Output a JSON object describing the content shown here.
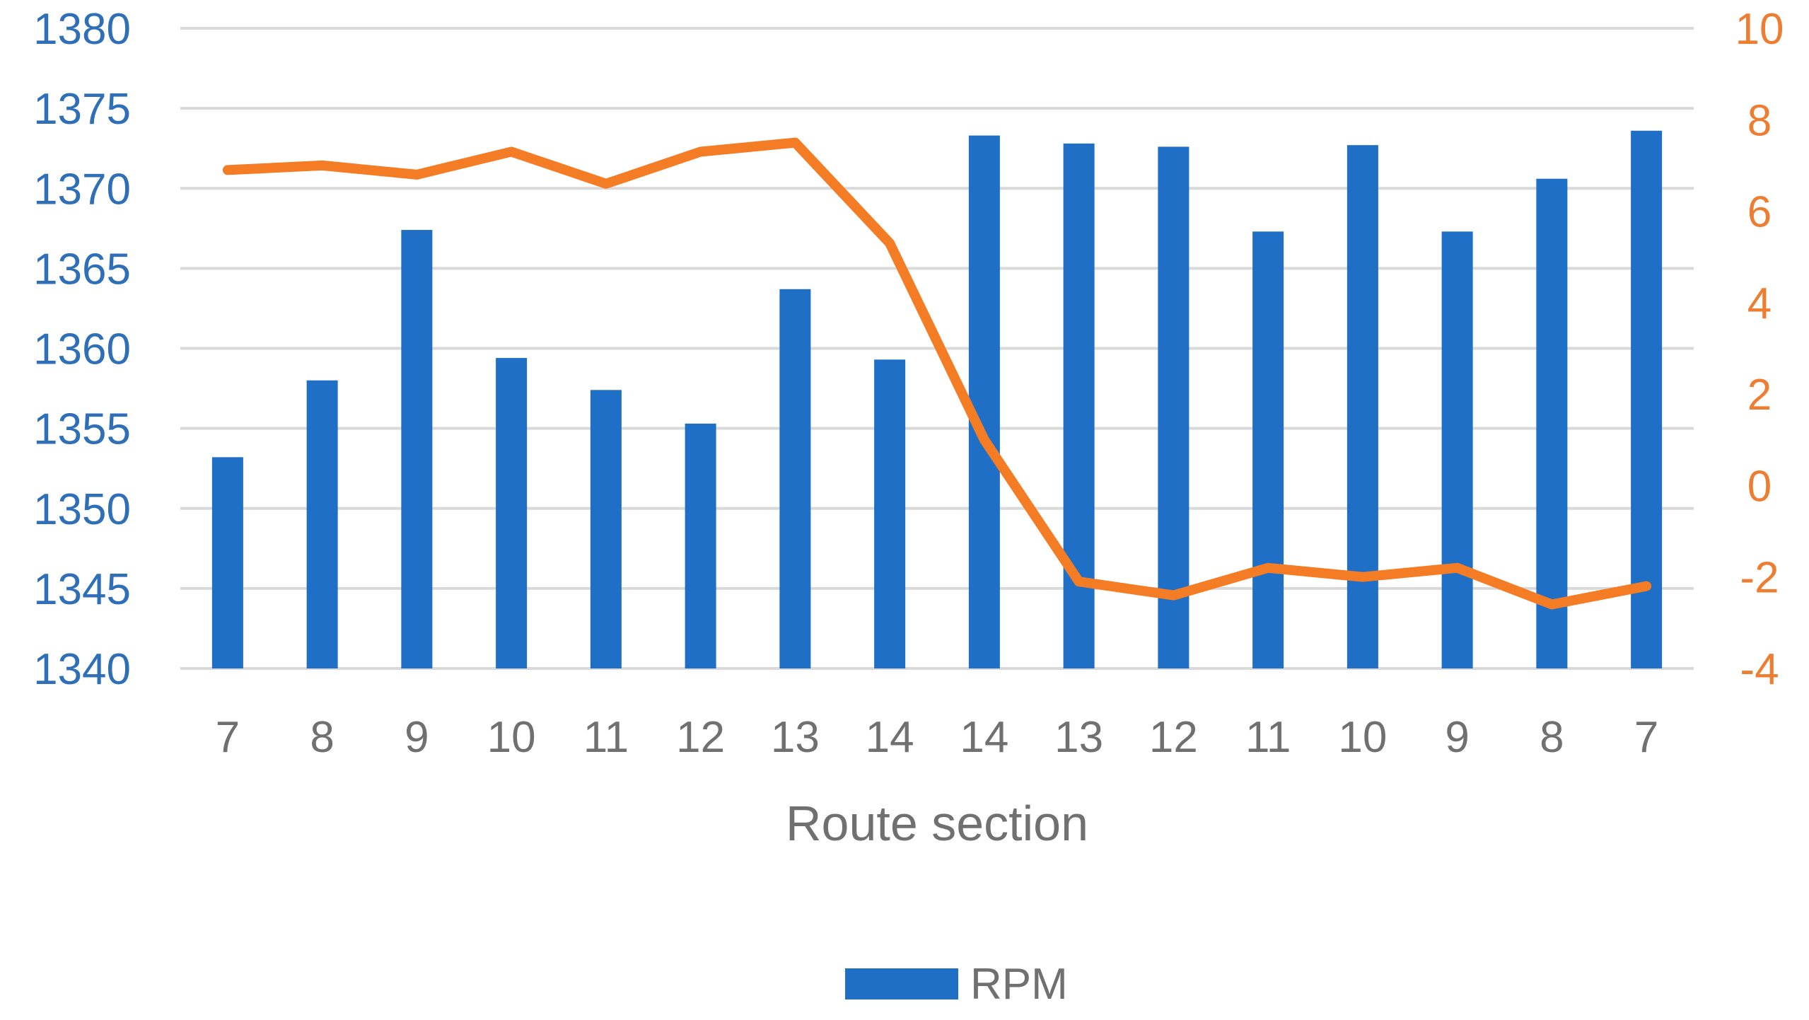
{
  "chart_data": {
    "type": "bar",
    "categories": [
      "7",
      "8",
      "9",
      "10",
      "11",
      "12",
      "13",
      "14",
      "14",
      "13",
      "12",
      "11",
      "10",
      "9",
      "8",
      "7"
    ],
    "series": [
      {
        "name": "RPM",
        "type": "bar",
        "axis": "left",
        "color": "#1F6FC6",
        "values": [
          1353.2,
          1358.0,
          1367.4,
          1359.4,
          1357.4,
          1355.3,
          1363.7,
          1359.3,
          1373.3,
          1372.8,
          1372.6,
          1367.3,
          1372.7,
          1367.3,
          1370.6,
          1373.6
        ]
      },
      {
        "type": "line",
        "axis": "right",
        "color": "#F47C24",
        "values": [
          6.9,
          7.0,
          6.8,
          7.3,
          6.6,
          7.3,
          7.5,
          5.3,
          1.0,
          -2.1,
          -2.4,
          -1.8,
          -2.0,
          -1.8,
          -2.6,
          -2.2
        ]
      }
    ],
    "xlabel": "Route section",
    "ylabel": "",
    "ylim": [
      1340,
      1380
    ],
    "yticks": [
      "1380",
      "1375",
      "1370",
      "1365",
      "1360",
      "1355",
      "1350",
      "1345",
      "1340"
    ],
    "y2lim": [
      -4,
      10
    ],
    "y2ticks": [
      "10",
      "8",
      "6",
      "4",
      "2",
      "0",
      "-2",
      "-4"
    ],
    "grid": true,
    "legend": {
      "position": "bottom",
      "entries": [
        "RPM"
      ]
    }
  }
}
